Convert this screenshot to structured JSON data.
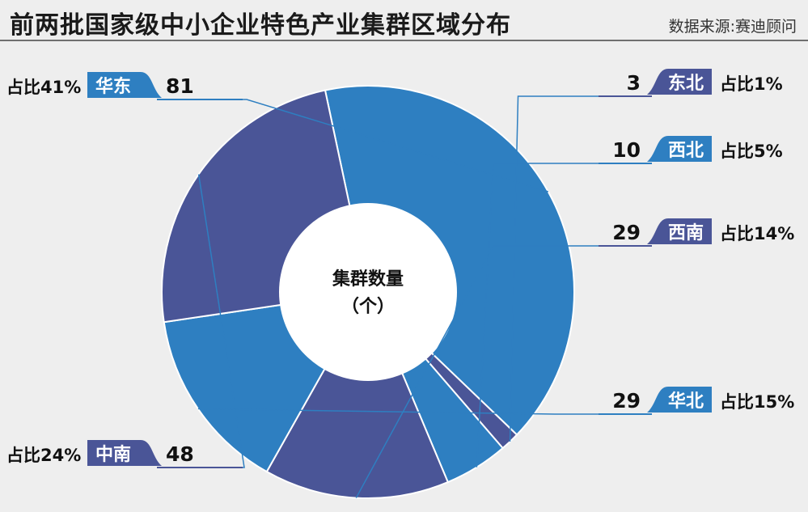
{
  "header": {
    "title": "前两批国家级中小企业特色产业集群区域分布",
    "source": "数据来源:赛迪顾问"
  },
  "colors": {
    "light_blue": "#2e7fc1",
    "dark_blue": "#4a5597",
    "background": "#eeeeee",
    "leader_line": "#2e7fc1"
  },
  "chart_data": {
    "type": "pie",
    "variant": "donut",
    "center_label": [
      "集群数量",
      "（个）"
    ],
    "slices": [
      {
        "name": "华东",
        "value": 81,
        "share_label": "占比41%",
        "color": "#2e7fc1"
      },
      {
        "name": "东北",
        "value": 3,
        "share_label": "占比1%",
        "color": "#4a5597"
      },
      {
        "name": "西北",
        "value": 10,
        "share_label": "占比5%",
        "color": "#2e7fc1"
      },
      {
        "name": "西南",
        "value": 29,
        "share_label": "占比14%",
        "color": "#4a5597"
      },
      {
        "name": "华北",
        "value": 29,
        "share_label": "占比15%",
        "color": "#2e7fc1"
      },
      {
        "name": "中南",
        "value": 48,
        "share_label": "占比24%",
        "color": "#4a5597"
      }
    ]
  }
}
